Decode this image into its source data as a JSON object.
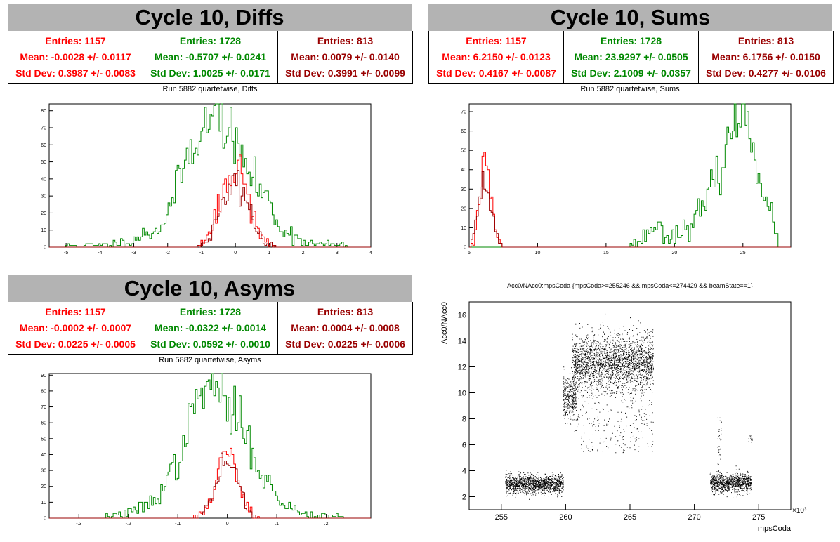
{
  "colors": {
    "red": "#ff0000",
    "green": "#008800",
    "darkred": "#990000",
    "title_bg": "#b3b3b3"
  },
  "panels": [
    {
      "title": "Cycle 10, Diffs",
      "subtitle": "Run 5882 quartetwise, Diffs",
      "stats": [
        {
          "entries": "Entries: 1157",
          "mean": "Mean: -0.0028 +/- 0.0117",
          "std": "Std Dev: 0.3987 +/- 0.0083",
          "color": "#ff0000"
        },
        {
          "entries": "Entries: 1728",
          "mean": "Mean: -0.5707 +/- 0.0241",
          "std": "Std Dev: 1.0025 +/- 0.0171",
          "color": "#008800"
        },
        {
          "entries": "Entries: 813",
          "mean": "Mean: 0.0079 +/- 0.0140",
          "std": "Std Dev: 0.3991 +/- 0.0099",
          "color": "#990000"
        }
      ]
    },
    {
      "title": "Cycle 10, Sums",
      "subtitle": "Run 5882 quartetwise, Sums",
      "stats": [
        {
          "entries": "Entries: 1157",
          "mean": "Mean: 6.2150 +/- 0.0123",
          "std": "Std Dev: 0.4167 +/- 0.0087",
          "color": "#ff0000"
        },
        {
          "entries": "Entries: 1728",
          "mean": "Mean: 23.9297 +/- 0.0505",
          "std": "Std Dev: 2.1009 +/- 0.0357",
          "color": "#008800"
        },
        {
          "entries": "Entries: 813",
          "mean": "Mean: 6.1756 +/- 0.0150",
          "std": "Std Dev: 0.4277 +/- 0.0106",
          "color": "#990000"
        }
      ]
    },
    {
      "title": "Cycle 10, Asyms",
      "subtitle": "Run 5882 quartetwise, Asyms",
      "stats": [
        {
          "entries": "Entries: 1157",
          "mean": "Mean: -0.0002 +/- 0.0007",
          "std": "Std Dev: 0.0225 +/- 0.0005",
          "color": "#ff0000"
        },
        {
          "entries": "Entries: 1728",
          "mean": "Mean: -0.0322 +/- 0.0014",
          "std": "Std Dev: 0.0592 +/- 0.0010",
          "color": "#008800"
        },
        {
          "entries": "Entries: 813",
          "mean": "Mean: 0.0004 +/- 0.0008",
          "std": "Std Dev: 0.0225 +/- 0.0006",
          "color": "#990000"
        }
      ]
    }
  ],
  "scatter_title": "Acc0/NAcc0:mpsCoda {mpsCoda>=255246 && mpsCoda<=274429 && beamState==1}",
  "chart_data": [
    {
      "type": "histogram",
      "title": "Run 5882 quartetwise, Diffs",
      "xlim": [
        -5.5,
        4
      ],
      "ylim": [
        0,
        84
      ],
      "xticks": [
        -5,
        -4,
        -3,
        -2,
        -1,
        0,
        1,
        2,
        3,
        4
      ],
      "yticks": [
        0,
        10,
        20,
        30,
        40,
        50,
        60,
        70,
        80
      ],
      "series": [
        {
          "name": "",
          "color": "#008800",
          "mean": -0.5707,
          "std": 1.0025,
          "peak": 83,
          "samples": [
            [
              -5,
              1
            ],
            [
              -4,
              1
            ],
            [
              -3.2,
              3
            ],
            [
              -2.6,
              8
            ],
            [
              -2.2,
              12
            ],
            [
              -1.8,
              30
            ],
            [
              -1.5,
              50
            ],
            [
              -1.2,
              62
            ],
            [
              -1.0,
              70
            ],
            [
              -0.7,
              72
            ],
            [
              -0.5,
              83
            ],
            [
              -0.3,
              70
            ],
            [
              -0.1,
              64
            ],
            [
              0.2,
              53
            ],
            [
              0.5,
              40
            ],
            [
              0.9,
              30
            ],
            [
              1.3,
              12
            ],
            [
              1.7,
              7
            ],
            [
              2.2,
              2
            ],
            [
              3.3,
              1
            ]
          ]
        },
        {
          "name": "",
          "color": "#ff0000",
          "mean": -0.0028,
          "std": 0.3987,
          "peak": 48
        },
        {
          "name": "",
          "color": "#990000",
          "mean": 0.0079,
          "std": 0.3991,
          "peak": 38
        }
      ]
    },
    {
      "type": "histogram",
      "title": "Run 5882 quartetwise, Sums",
      "xlim": [
        5,
        28.5
      ],
      "ylim": [
        0,
        74
      ],
      "xticks": [
        5,
        10,
        15,
        20,
        25
      ],
      "yticks": [
        0,
        10,
        20,
        30,
        40,
        50,
        60,
        70
      ],
      "series": [
        {
          "name": "",
          "color": "#008800",
          "mean": 23.9297,
          "std": 2.1009,
          "peak": 72,
          "samples": [
            [
              16.5,
              1
            ],
            [
              17.5,
              3
            ],
            [
              18.5,
              12
            ],
            [
              19.5,
              6
            ],
            [
              20.5,
              8
            ],
            [
              21.5,
              14
            ],
            [
              22.5,
              25
            ],
            [
              23.5,
              45
            ],
            [
              24.5,
              65
            ],
            [
              25.0,
              72
            ],
            [
              25.5,
              62
            ],
            [
              26.5,
              30
            ],
            [
              27.5,
              4
            ]
          ]
        },
        {
          "name": "",
          "color": "#ff0000",
          "mean": 6.215,
          "std": 0.4167,
          "peak": 42
        },
        {
          "name": "",
          "color": "#990000",
          "mean": 6.1756,
          "std": 0.4277,
          "peak": 35
        }
      ]
    },
    {
      "type": "histogram",
      "title": "Run 5882 quartetwise, Asyms",
      "xlim": [
        -0.36,
        0.29
      ],
      "ylim": [
        0,
        91
      ],
      "xticks": [
        -0.3,
        -0.2,
        -0.1,
        0,
        0.1,
        0.2
      ],
      "yticks": [
        0,
        10,
        20,
        30,
        40,
        50,
        60,
        70,
        80,
        90
      ],
      "series": [
        {
          "name": "",
          "color": "#008800",
          "mean": -0.0322,
          "std": 0.0592,
          "peak": 87,
          "samples": [
            [
              -0.25,
              1
            ],
            [
              -0.2,
              3
            ],
            [
              -0.15,
              10
            ],
            [
              -0.1,
              35
            ],
            [
              -0.06,
              75
            ],
            [
              -0.03,
              87
            ],
            [
              0.0,
              70
            ],
            [
              0.03,
              60
            ],
            [
              0.06,
              35
            ],
            [
              0.1,
              12
            ],
            [
              0.15,
              3
            ],
            [
              0.24,
              1
            ]
          ]
        },
        {
          "name": "",
          "color": "#ff0000",
          "mean": -0.0002,
          "std": 0.0225,
          "peak": 40
        },
        {
          "name": "",
          "color": "#990000",
          "mean": 0.0004,
          "std": 0.0225,
          "peak": 36
        }
      ]
    },
    {
      "type": "scatter",
      "title": "Acc0/NAcc0:mpsCoda {mpsCoda>=255246 && mpsCoda<=274429 && beamState==1}",
      "xlabel": "mpsCoda",
      "ylabel": "Acc0/NAcc0",
      "xlim": [
        252.5,
        277.5
      ],
      "ylim": [
        1,
        17
      ],
      "xticks": [
        255,
        260,
        265,
        270,
        275
      ],
      "yticks": [
        2,
        4,
        6,
        8,
        10,
        12,
        14,
        16
      ],
      "x_multiplier": "×10³",
      "clusters": [
        {
          "x": [
            255.3,
            259.8
          ],
          "y_mean": 3.0,
          "y_std": 0.35,
          "count": 1400
        },
        {
          "x": [
            259.8,
            260.8
          ],
          "y_mean": 9.8,
          "y_std": 0.9,
          "count": 350
        },
        {
          "x": [
            260.5,
            266.8
          ],
          "y_mean": 12.4,
          "y_std": 1.05,
          "count": 2600
        },
        {
          "x": [
            271.2,
            274.4
          ],
          "y_mean": 3.1,
          "y_std": 0.35,
          "count": 1000
        }
      ]
    }
  ]
}
